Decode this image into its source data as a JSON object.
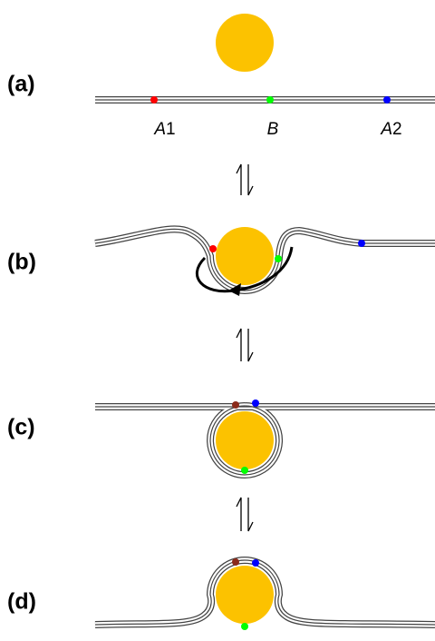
{
  "panels": [
    {
      "label": "(a)"
    },
    {
      "label": "(b)"
    },
    {
      "label": "(c)"
    },
    {
      "label": "(d)"
    }
  ],
  "point_labels": [
    {
      "italic": "A",
      "plain": "1"
    },
    {
      "italic": "B"
    },
    {
      "italic": "A",
      "plain": "2"
    }
  ]
}
